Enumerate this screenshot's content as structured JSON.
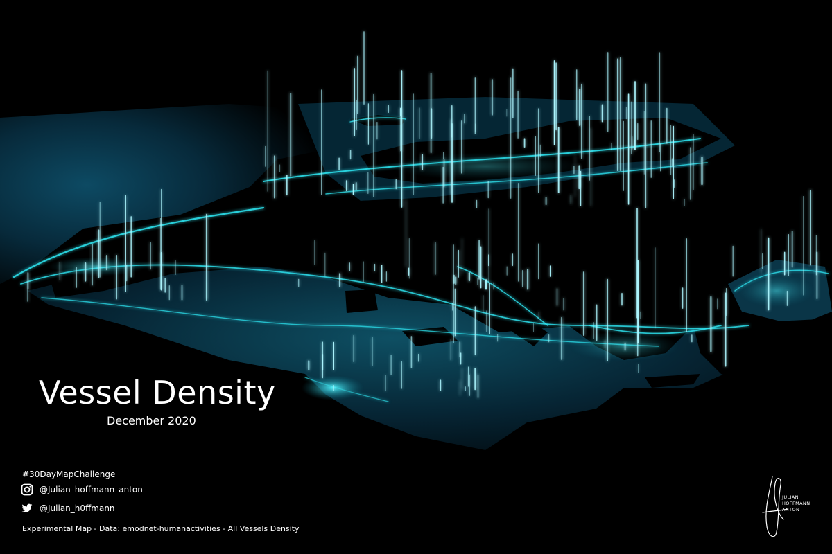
{
  "title": "Vessel Density",
  "subtitle": "December 2020",
  "hashtag": "#30DayMapChallenge",
  "social": {
    "instagram": {
      "icon": "instagram-icon",
      "handle": "@Julian_hoffmann_anton"
    },
    "twitter": {
      "icon": "twitter-icon",
      "handle": "@Julian_h0ffmann"
    }
  },
  "credit": "Experimental Map - Data: emodnet-humanactivities - All Vessels Density",
  "signature": {
    "lines": [
      "JULIAN",
      "HOFFMANN",
      "ANTON"
    ]
  },
  "colors": {
    "background": "#000000",
    "sea_deep": "#041623",
    "sea_mid": "#0b3a4f",
    "glow": "#28e4ef",
    "spike": "#bff9ff",
    "text": "#ffffff"
  }
}
